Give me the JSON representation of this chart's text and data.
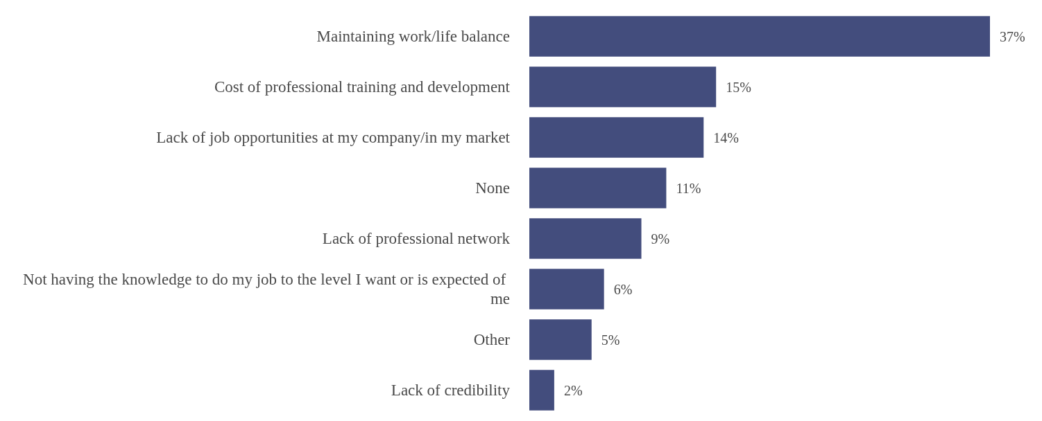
{
  "chart_data": {
    "type": "bar",
    "orientation": "horizontal",
    "categories": [
      "Maintaining work/life balance",
      "Cost of professional training and development",
      "Lack of job opportunities at my company/in my market",
      "None",
      "Lack of professional network",
      "Not having the knowledge to do my job to the level I want or is expected of me",
      "Other",
      "Lack of credibility"
    ],
    "values": [
      37,
      15,
      14,
      11,
      9,
      6,
      5,
      2
    ],
    "value_labels": [
      "37%",
      "15%",
      "14%",
      "11%",
      "9%",
      "6%",
      "5%",
      "2%"
    ],
    "color": "#434d7d"
  }
}
